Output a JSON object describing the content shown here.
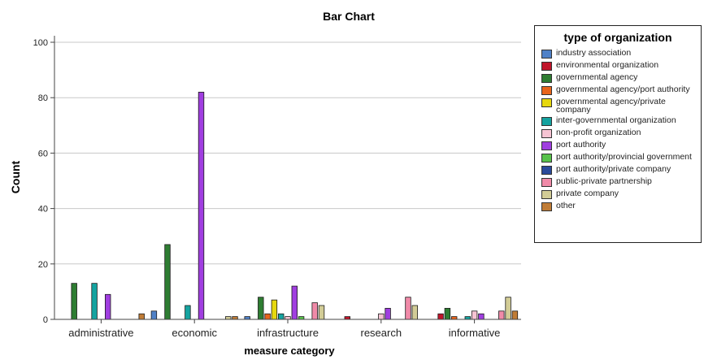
{
  "chart_data": {
    "type": "bar",
    "title": "Bar Chart",
    "xlabel": "measure category",
    "ylabel": "Count",
    "ylim": [
      0,
      100
    ],
    "yticks": [
      0,
      20,
      40,
      60,
      80,
      100
    ],
    "grid": true,
    "legend_position": "right",
    "legend_title": "type of organization",
    "categories": [
      "administrative",
      "economic",
      "infrastructure",
      "research",
      "informative"
    ],
    "series": [
      {
        "name": "industry association",
        "color": "#4f81c7",
        "values": [
          0,
          3,
          1,
          0,
          0
        ]
      },
      {
        "name": "environmental organization",
        "color": "#c0142a",
        "values": [
          0,
          0,
          0,
          1,
          2
        ]
      },
      {
        "name": "governmental agency",
        "color": "#2e7d32",
        "values": [
          13,
          27,
          8,
          0,
          4
        ]
      },
      {
        "name": "governmental agency/port authority",
        "color": "#e8641b",
        "values": [
          0,
          0,
          2,
          0,
          1
        ]
      },
      {
        "name": "governmental agency/private company",
        "color": "#e6d80f",
        "values": [
          0,
          0,
          7,
          0,
          0
        ]
      },
      {
        "name": "inter-governmental organization",
        "color": "#15a3a0",
        "values": [
          13,
          5,
          2,
          0,
          1
        ]
      },
      {
        "name": "non-profit organization",
        "color": "#f6c4d3",
        "values": [
          0,
          0,
          1,
          2,
          3
        ]
      },
      {
        "name": "port authority",
        "color": "#a03ee0",
        "values": [
          9,
          82,
          12,
          4,
          2
        ]
      },
      {
        "name": "port authority/provincial government",
        "color": "#57c24a",
        "values": [
          0,
          0,
          1,
          0,
          0
        ]
      },
      {
        "name": "port authority/private company",
        "color": "#2a4a9a",
        "values": [
          0,
          0,
          0,
          0,
          0
        ]
      },
      {
        "name": "public-private partnership",
        "color": "#f08aa8",
        "values": [
          0,
          0,
          6,
          8,
          3
        ]
      },
      {
        "name": "private company",
        "color": "#d2cc96",
        "values": [
          0,
          1,
          5,
          5,
          8
        ]
      },
      {
        "name": "other",
        "color": "#c07c36",
        "values": [
          2,
          1,
          0,
          0,
          3
        ]
      }
    ]
  }
}
